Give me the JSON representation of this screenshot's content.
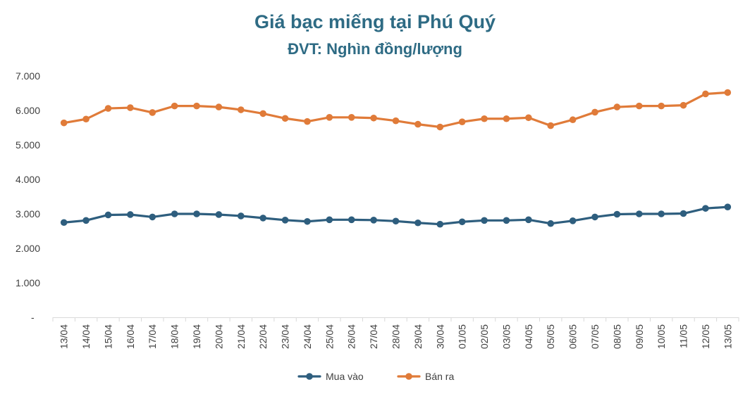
{
  "chart_data": {
    "type": "line",
    "title": "Giá bạc miếng tại Phú Quý",
    "subtitle": "ĐVT: Nghìn đồng/lượng",
    "xlabel": "",
    "ylabel": "",
    "ylim": [
      0,
      7000
    ],
    "yticks": [
      "-",
      "1.000",
      "2.000",
      "3.000",
      "4.000",
      "5.000",
      "6.000",
      "7.000"
    ],
    "grid": false,
    "legend_position": "bottom",
    "categories": [
      "13/04",
      "14/04",
      "15/04",
      "16/04",
      "17/04",
      "18/04",
      "19/04",
      "20/04",
      "21/04",
      "22/04",
      "23/04",
      "24/04",
      "25/04",
      "26/04",
      "27/04",
      "28/04",
      "29/04",
      "30/04",
      "01/05",
      "02/05",
      "03/05",
      "04/05",
      "05/05",
      "06/05",
      "07/05",
      "08/05",
      "09/05",
      "10/05",
      "11/05",
      "12/05",
      "13/05"
    ],
    "series": [
      {
        "name": "Mua vào",
        "color": "#2e5e7e",
        "values": [
          2750,
          2810,
          2970,
          2980,
          2910,
          3000,
          3000,
          2980,
          2940,
          2880,
          2820,
          2780,
          2830,
          2830,
          2820,
          2790,
          2740,
          2700,
          2770,
          2810,
          2810,
          2830,
          2720,
          2800,
          2910,
          2990,
          3000,
          3000,
          3010,
          3160,
          3200
        ]
      },
      {
        "name": "Bán ra",
        "color": "#e07b39",
        "values": [
          5640,
          5750,
          6060,
          6080,
          5940,
          6130,
          6130,
          6100,
          6020,
          5910,
          5770,
          5680,
          5800,
          5800,
          5780,
          5700,
          5600,
          5520,
          5670,
          5760,
          5760,
          5790,
          5560,
          5730,
          5950,
          6100,
          6130,
          6130,
          6150,
          6480,
          6520
        ]
      }
    ]
  }
}
